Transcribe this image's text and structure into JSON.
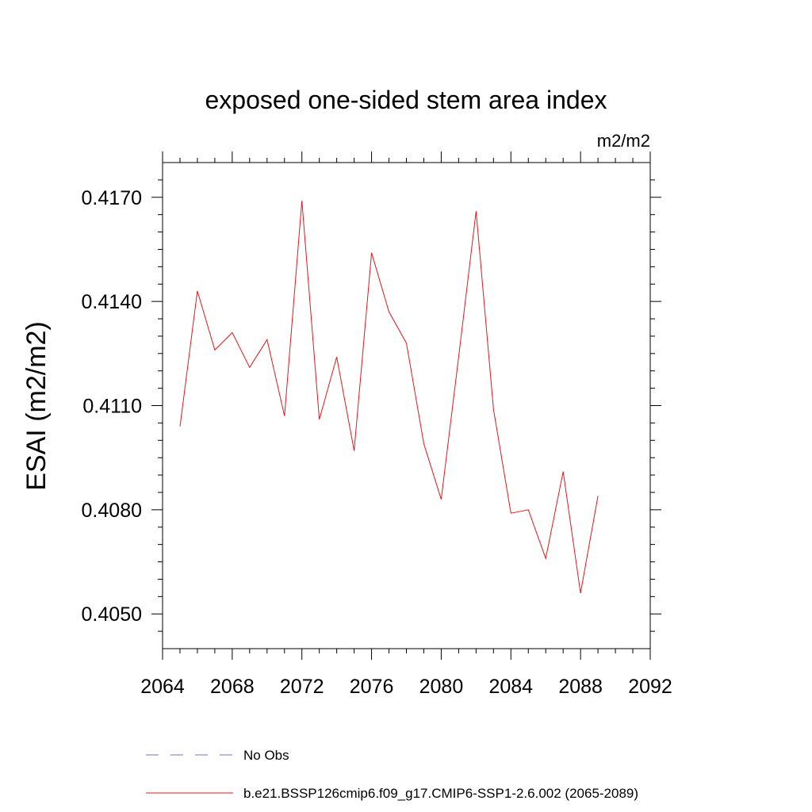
{
  "chart_data": {
    "type": "line",
    "title": "exposed one-sided stem area index",
    "units": "m2/m2",
    "ylabel": "ESAI  (m2/m2)",
    "xlabel": "",
    "xlim": [
      2064,
      2092
    ],
    "ylim": [
      0.404,
      0.418
    ],
    "x_ticks": [
      2064,
      2068,
      2072,
      2076,
      2080,
      2084,
      2088,
      2092
    ],
    "x_tick_labels": [
      "2064",
      "2068",
      "2072",
      "2076",
      "2080",
      "2084",
      "2088",
      "2092"
    ],
    "y_ticks": [
      0.405,
      0.408,
      0.411,
      0.414,
      0.417
    ],
    "y_tick_labels": [
      "0.4050",
      "0.4080",
      "0.4110",
      "0.4140",
      "0.4170"
    ],
    "grid": false,
    "legend_position": "bottom",
    "series": [
      {
        "name": "No Obs",
        "color": "#7a6fcf",
        "style": "dashed",
        "x": [],
        "values": []
      },
      {
        "name": "b.e21.BSSP126cmip6.f09_g17.CMIP6-SSP1-2.6.002 (2065-2089)",
        "color": "#e8151b",
        "style": "solid",
        "x": [
          2065,
          2066,
          2067,
          2068,
          2069,
          2070,
          2071,
          2072,
          2073,
          2074,
          2075,
          2076,
          2077,
          2078,
          2079,
          2080,
          2081,
          2082,
          2083,
          2084,
          2085,
          2086,
          2087,
          2088,
          2089
        ],
        "values": [
          0.4104,
          0.4143,
          0.4126,
          0.4131,
          0.4121,
          0.4129,
          0.4107,
          0.4169,
          0.4106,
          0.4124,
          0.4097,
          0.4154,
          0.4137,
          0.4128,
          0.4099,
          0.4083,
          0.4124,
          0.4166,
          0.4109,
          0.4079,
          0.408,
          0.4066,
          0.4091,
          0.4056,
          0.4084
        ]
      }
    ]
  }
}
